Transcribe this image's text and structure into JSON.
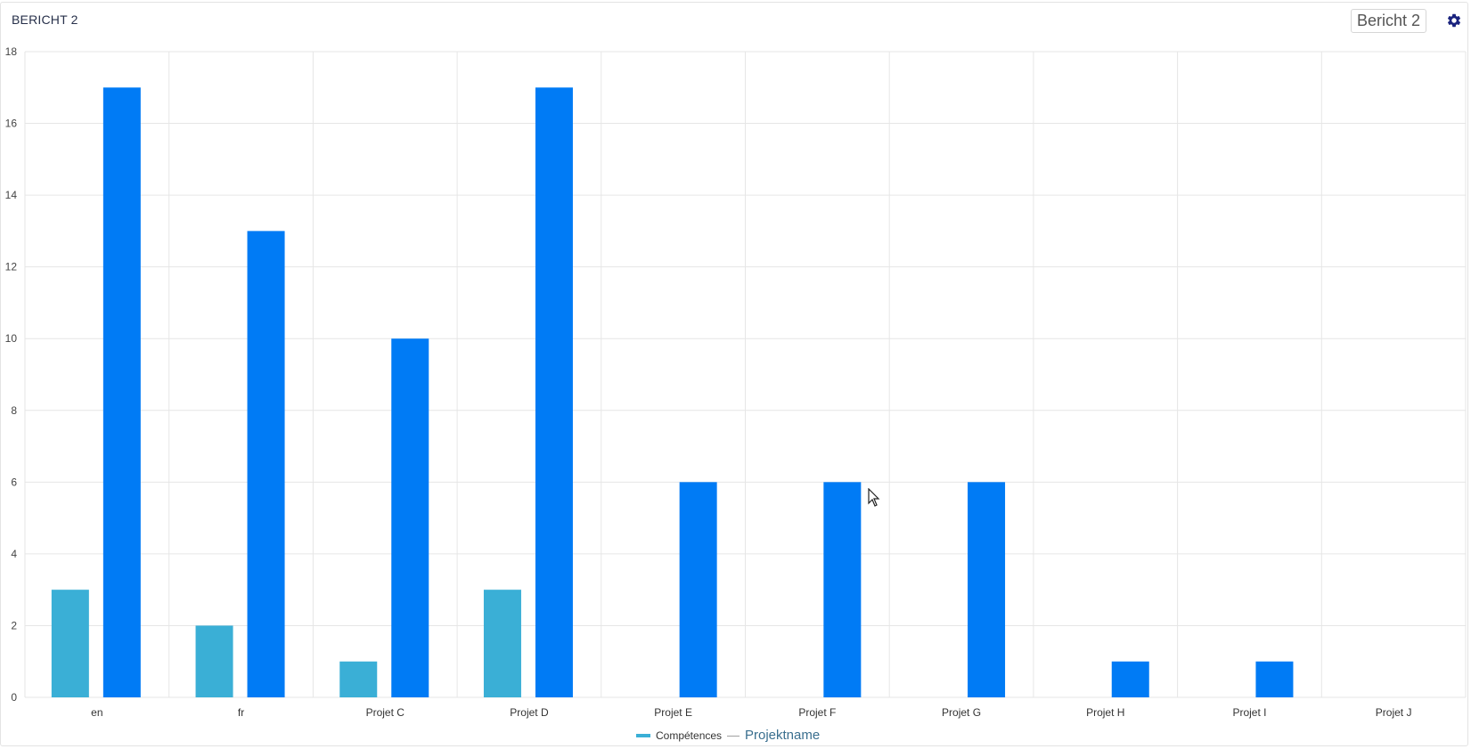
{
  "header": {
    "title": "BERICHT 2",
    "report_selector": "Bericht 2",
    "settings_icon": "gear-icon"
  },
  "chart_data": {
    "type": "bar",
    "categories": [
      "en",
      "fr",
      "Projet C",
      "Projet D",
      "Projet E",
      "Projet F",
      "Projet G",
      "Projet H",
      "Projet I",
      "Projet J"
    ],
    "series": [
      {
        "name": "Compétences",
        "values": [
          3,
          2,
          1,
          3,
          0,
          0,
          0,
          0,
          0,
          0
        ],
        "color": "#3aafd6"
      },
      {
        "name": "Projektname",
        "values": [
          17,
          13,
          10,
          17,
          6,
          6,
          6,
          1,
          1,
          0
        ],
        "color": "#007bf5"
      }
    ],
    "ylim": [
      0,
      18
    ],
    "yticks": [
      0,
      2,
      4,
      6,
      8,
      10,
      12,
      14,
      16,
      18
    ],
    "grid": true,
    "legend": "bottom-center",
    "legend_separator": "—",
    "title": "",
    "xlabel": "",
    "ylabel": ""
  }
}
